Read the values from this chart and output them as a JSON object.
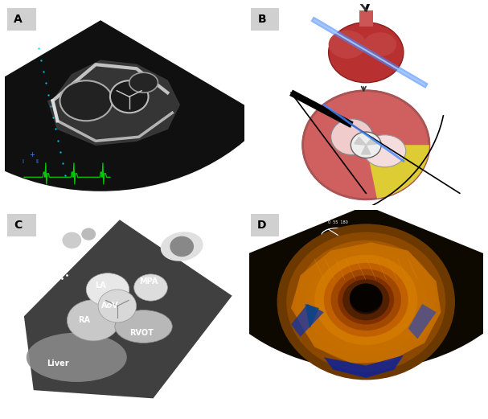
{
  "figure_width": 6.07,
  "figure_height": 5.21,
  "dpi": 100,
  "bg_color": "#ffffff",
  "panel_bg": "#d0d0d0",
  "panel_labels": [
    "A",
    "B",
    "C",
    "D"
  ],
  "panel_label_fontsize": 10,
  "ultrasound_bg": "#000000",
  "ct_bg": "#111111",
  "echo3d_bg": "#0a0a0a",
  "anatomy_bg": "#f0f0f0",
  "green_ecg_color": "#00cc00",
  "blue_probe_color": "#4488ff",
  "cyan_dots_color": "#00ccff"
}
